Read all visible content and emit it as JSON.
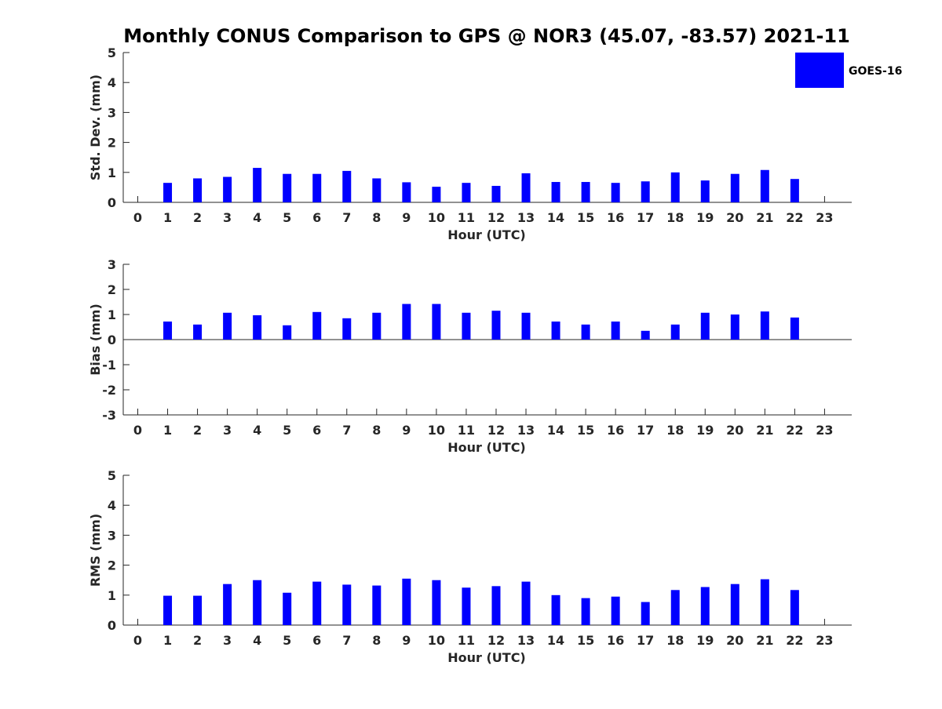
{
  "title": "Monthly CONUS Comparison to GPS @ NOR3 (45.07, -83.57) 2021-11",
  "legend": {
    "label": "GOES-16",
    "color": "#0000ff",
    "placement": "top-right"
  },
  "chart_data": [
    {
      "type": "bar",
      "ylabel": "Std. Dev. (mm)",
      "xlabel": "Hour (UTC)",
      "ylim": [
        0,
        5
      ],
      "yticks": [
        0,
        1,
        2,
        3,
        4,
        5
      ],
      "grid": false,
      "series": [
        {
          "name": "GOES-16",
          "x": [
            1,
            2,
            3,
            4,
            5,
            6,
            7,
            8,
            9,
            10,
            11,
            12,
            13,
            14,
            15,
            16,
            17,
            18,
            19,
            20,
            21,
            22
          ],
          "values": [
            0.65,
            0.8,
            0.85,
            1.15,
            0.95,
            0.95,
            1.05,
            0.8,
            0.67,
            0.52,
            0.65,
            0.55,
            0.97,
            0.68,
            0.68,
            0.65,
            0.7,
            1.0,
            0.73,
            0.95,
            1.08,
            0.78
          ]
        }
      ]
    },
    {
      "type": "bar",
      "ylabel": "Bias (mm)",
      "xlabel": "Hour (UTC)",
      "ylim": [
        -3,
        3
      ],
      "yticks": [
        -3,
        -2,
        -1,
        0,
        1,
        2,
        3
      ],
      "grid": false,
      "series": [
        {
          "name": "GOES-16",
          "x": [
            1,
            2,
            3,
            4,
            5,
            6,
            7,
            8,
            9,
            10,
            11,
            12,
            13,
            14,
            15,
            16,
            17,
            18,
            19,
            20,
            21,
            22
          ],
          "values": [
            0.72,
            0.6,
            1.07,
            0.97,
            0.57,
            1.1,
            0.85,
            1.07,
            1.42,
            1.42,
            1.07,
            1.15,
            1.07,
            0.72,
            0.6,
            0.72,
            0.35,
            0.6,
            1.07,
            1.0,
            1.12,
            0.88
          ]
        }
      ]
    },
    {
      "type": "bar",
      "ylabel": "RMS (mm)",
      "xlabel": "Hour (UTC)",
      "ylim": [
        0,
        5
      ],
      "yticks": [
        0,
        1,
        2,
        3,
        4,
        5
      ],
      "grid": false,
      "series": [
        {
          "name": "GOES-16",
          "x": [
            1,
            2,
            3,
            4,
            5,
            6,
            7,
            8,
            9,
            10,
            11,
            12,
            13,
            14,
            15,
            16,
            17,
            18,
            19,
            20,
            21,
            22
          ],
          "values": [
            0.98,
            0.98,
            1.37,
            1.5,
            1.08,
            1.45,
            1.35,
            1.32,
            1.55,
            1.5,
            1.25,
            1.3,
            1.45,
            1.0,
            0.9,
            0.95,
            0.77,
            1.17,
            1.27,
            1.37,
            1.53,
            1.17
          ]
        }
      ]
    }
  ],
  "x_ticks": [
    "0",
    "1",
    "2",
    "3",
    "4",
    "5",
    "6",
    "7",
    "8",
    "9",
    "10",
    "11",
    "12",
    "13",
    "14",
    "15",
    "16",
    "17",
    "18",
    "19",
    "20",
    "21",
    "22",
    "23"
  ]
}
